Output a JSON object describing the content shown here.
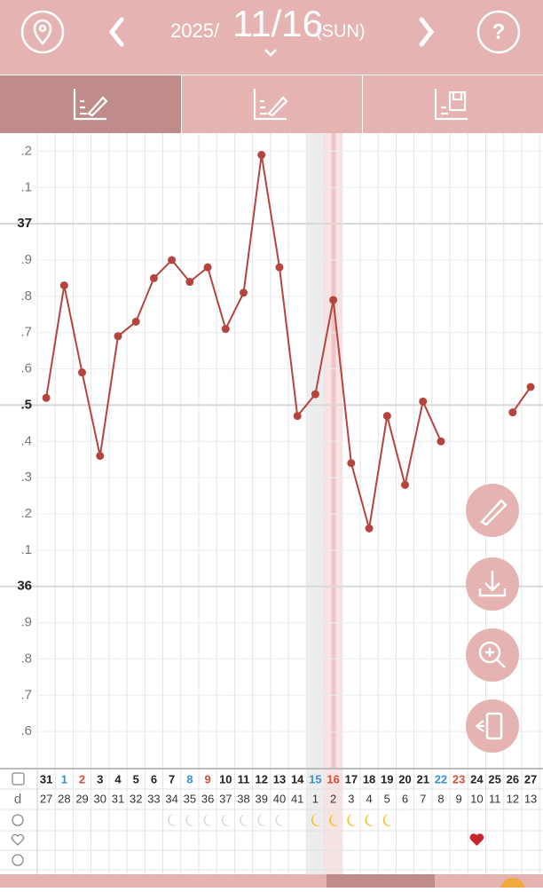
{
  "header": {
    "year": "2025/",
    "date": "11/16",
    "weekday": "(SUN)",
    "help": "?"
  },
  "chart_data": {
    "type": "line",
    "color": "#b5443f",
    "categories": [
      "31",
      "1",
      "2",
      "3",
      "4",
      "5",
      "6",
      "7",
      "8",
      "9",
      "10",
      "11",
      "12",
      "13",
      "14",
      "15",
      "16",
      "17",
      "18",
      "19",
      "20",
      "21",
      "22",
      "23",
      "24",
      "25",
      "26",
      "27"
    ],
    "category_colors": [
      "#222",
      "#3a8fd0",
      "#d0503a",
      "#222",
      "#222",
      "#222",
      "#222",
      "#222",
      "#3a8fd0",
      "#d0503a",
      "#222",
      "#222",
      "#222",
      "#222",
      "#222",
      "#3a8fd0",
      "#d0503a",
      "#222",
      "#222",
      "#222",
      "#222",
      "#222",
      "#3a8fd0",
      "#d0503a",
      "#222",
      "#222",
      "#222",
      "#222"
    ],
    "cycle_label": "d",
    "cycle_days": [
      "27",
      "28",
      "29",
      "30",
      "31",
      "32",
      "33",
      "34",
      "35",
      "36",
      "37",
      "38",
      "39",
      "40",
      "41",
      "1",
      "2",
      "3",
      "4",
      "5",
      "6",
      "7",
      "8",
      "9",
      "10",
      "11",
      "12",
      "13"
    ],
    "values": [
      36.52,
      36.83,
      36.59,
      36.36,
      36.69,
      36.73,
      36.85,
      36.9,
      36.84,
      36.88,
      36.71,
      36.81,
      37.19,
      36.88,
      36.47,
      36.53,
      36.79,
      36.34,
      36.16,
      36.47,
      36.28,
      36.51,
      36.4,
      null,
      null,
      null,
      36.48,
      36.55
    ],
    "ylim": [
      35.5,
      37.25
    ],
    "yticks": [
      {
        "value": 35.6,
        "label": ".6"
      },
      {
        "value": 35.7,
        "label": ".7"
      },
      {
        "value": 35.8,
        "label": ".8"
      },
      {
        "value": 35.9,
        "label": ".9"
      },
      36,
      {
        "value": 36.1,
        "label": ".1"
      },
      {
        "value": 36.2,
        "label": ".2"
      },
      {
        "value": 36.3,
        "label": ".3"
      },
      {
        "value": 36.4,
        "label": ".4"
      },
      {
        "value": 36.5,
        "label": ".5"
      },
      {
        "value": 36.6,
        "label": ".6"
      },
      {
        "value": 36.7,
        "label": ".7"
      },
      {
        "value": 36.8,
        "label": ".8"
      },
      {
        "value": 36.9,
        "label": ".9"
      },
      37,
      {
        "value": 37.1,
        "label": ".1"
      },
      {
        "value": 37.2,
        "label": ".2"
      }
    ],
    "grid": true
  }
}
